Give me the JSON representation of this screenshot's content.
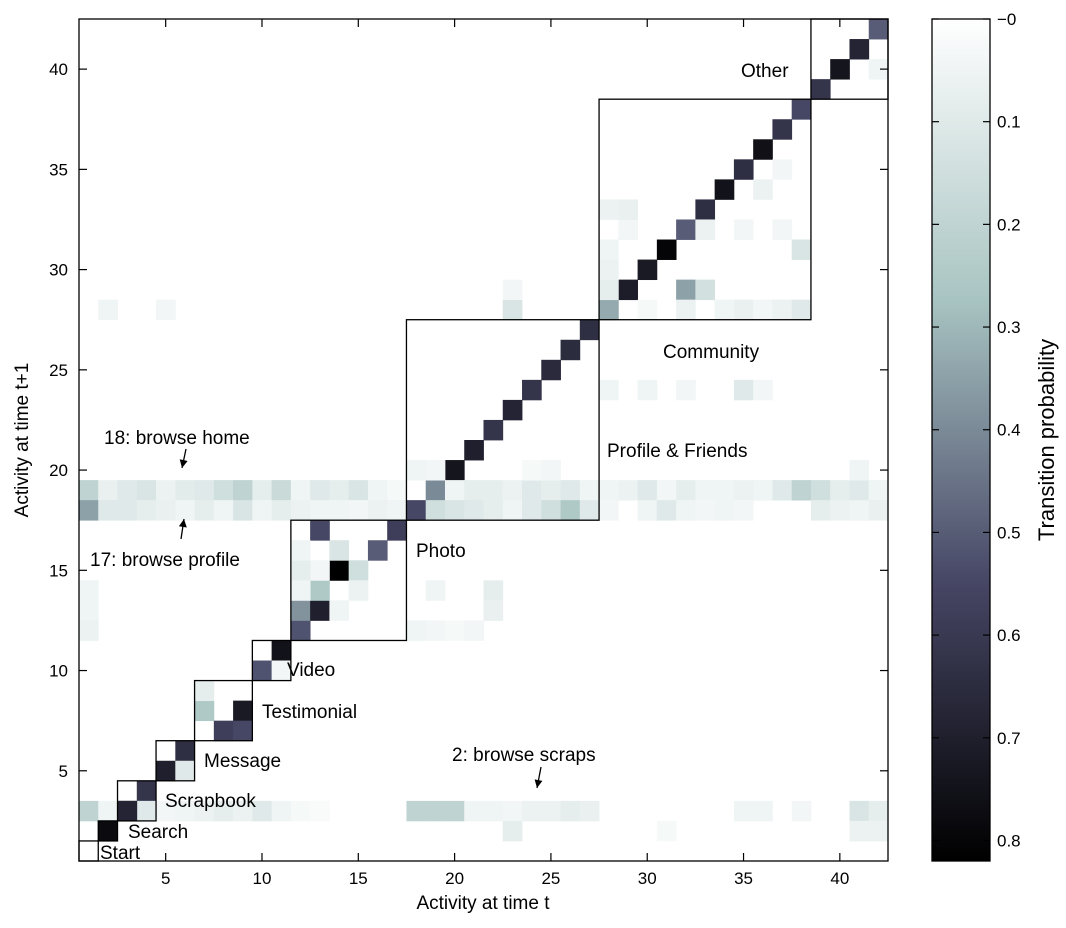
{
  "chart_data": {
    "type": "heatmap",
    "xlabel": "Activity at time t",
    "ylabel": "Activity at time t+1",
    "colorbar_label": "Transition probability",
    "xlim": [
      0.5,
      42.5
    ],
    "ylim": [
      0.5,
      42.5
    ],
    "x_ticks": [
      5,
      10,
      15,
      20,
      25,
      30,
      35,
      40
    ],
    "y_ticks": [
      5,
      10,
      15,
      20,
      25,
      30,
      35,
      40
    ],
    "colorbar_range": [
      0,
      0.82
    ],
    "colorbar_ticks": [
      "−0",
      "0.1",
      "0.2",
      "0.3",
      "0.4",
      "0.5",
      "0.6",
      "0.7",
      "0.8"
    ],
    "colorbar_tick_values": [
      0,
      0.1,
      0.2,
      0.3,
      0.4,
      0.5,
      0.6,
      0.7,
      0.8
    ],
    "colormap": [
      "#ffffff",
      "#a8c4c2",
      "#474766",
      "#000000"
    ],
    "groups": [
      {
        "label": "Start",
        "from": 1,
        "to": 1
      },
      {
        "label": "Search",
        "from": 2,
        "to": 2
      },
      {
        "label": "Scrapbook",
        "from": 3,
        "to": 4
      },
      {
        "label": "Message",
        "from": 5,
        "to": 6
      },
      {
        "label": "Testimonial",
        "from": 7,
        "to": 9
      },
      {
        "label": "Video",
        "from": 10,
        "to": 11
      },
      {
        "label": "Photo",
        "from": 12,
        "to": 17
      },
      {
        "label": "Profile & Friends",
        "from": 18,
        "to": 27
      },
      {
        "label": "Community",
        "from": 28,
        "to": 38
      },
      {
        "label": "Other",
        "from": 39,
        "to": 42
      }
    ],
    "annotations": [
      {
        "text": "18: browse home",
        "target_x": 6,
        "target_y": 19.3
      },
      {
        "text": "17: browse profile",
        "target_x": 6,
        "target_y": 17.6
      },
      {
        "text": "2: browse scraps",
        "target_x": 24,
        "target_y": 3.6
      }
    ],
    "cells": [
      [
        2,
        2,
        0.78
      ],
      [
        3,
        3,
        0.68
      ],
      [
        4,
        4,
        0.62
      ],
      [
        4,
        3,
        0.1
      ],
      [
        5,
        5,
        0.7
      ],
      [
        6,
        6,
        0.64
      ],
      [
        6,
        5,
        0.1
      ],
      [
        7,
        8,
        0.25
      ],
      [
        8,
        7,
        0.58
      ],
      [
        9,
        8,
        0.72
      ],
      [
        9,
        7,
        0.55
      ],
      [
        7,
        9,
        0.08
      ],
      [
        10,
        10,
        0.52
      ],
      [
        11,
        11,
        0.75
      ],
      [
        11,
        10,
        0.04
      ],
      [
        12,
        12,
        0.52
      ],
      [
        12,
        13,
        0.38
      ],
      [
        13,
        13,
        0.7
      ],
      [
        13,
        14,
        0.25
      ],
      [
        14,
        15,
        0.82
      ],
      [
        15,
        15,
        0.15
      ],
      [
        16,
        16,
        0.5
      ],
      [
        17,
        17,
        0.58
      ],
      [
        14,
        16,
        0.12
      ],
      [
        13,
        15,
        0.04
      ],
      [
        12,
        15,
        0.08
      ],
      [
        13,
        17,
        0.55
      ],
      [
        12,
        14,
        0.05
      ],
      [
        12,
        16,
        0.05
      ],
      [
        15,
        14,
        0.06
      ],
      [
        14,
        13,
        0.05
      ],
      [
        18,
        18,
        0.55
      ],
      [
        19,
        19,
        0.4
      ],
      [
        20,
        20,
        0.74
      ],
      [
        21,
        21,
        0.7
      ],
      [
        22,
        22,
        0.62
      ],
      [
        23,
        23,
        0.68
      ],
      [
        24,
        24,
        0.62
      ],
      [
        25,
        25,
        0.66
      ],
      [
        26,
        26,
        0.65
      ],
      [
        27,
        27,
        0.64
      ],
      [
        28,
        28,
        0.33
      ],
      [
        29,
        29,
        0.71
      ],
      [
        30,
        30,
        0.72
      ],
      [
        31,
        31,
        0.8
      ],
      [
        32,
        32,
        0.5
      ],
      [
        33,
        33,
        0.64
      ],
      [
        34,
        34,
        0.75
      ],
      [
        35,
        35,
        0.64
      ],
      [
        36,
        36,
        0.76
      ],
      [
        37,
        37,
        0.62
      ],
      [
        38,
        38,
        0.55
      ],
      [
        32,
        29,
        0.35
      ],
      [
        33,
        29,
        0.14
      ],
      [
        28,
        29,
        0.08
      ],
      [
        28,
        30,
        0.06
      ],
      [
        28,
        31,
        0.05
      ],
      [
        29,
        32,
        0.04
      ],
      [
        33,
        32,
        0.06
      ],
      [
        38,
        31,
        0.12
      ],
      [
        37,
        35,
        0.04
      ],
      [
        30,
        28,
        0.03
      ],
      [
        35,
        28,
        0.07
      ],
      [
        36,
        28,
        0.04
      ],
      [
        37,
        28,
        0.06
      ],
      [
        38,
        28,
        0.1
      ],
      [
        34,
        28,
        0.05
      ],
      [
        32,
        28,
        0.06
      ],
      [
        39,
        39,
        0.62
      ],
      [
        40,
        40,
        0.74
      ],
      [
        41,
        41,
        0.68
      ],
      [
        42,
        42,
        0.5
      ],
      [
        42,
        40,
        0.05
      ],
      [
        1,
        19,
        0.2
      ],
      [
        2,
        19,
        0.07
      ],
      [
        3,
        19,
        0.1
      ],
      [
        4,
        19,
        0.12
      ],
      [
        5,
        19,
        0.06
      ],
      [
        6,
        19,
        0.09
      ],
      [
        7,
        19,
        0.1
      ],
      [
        8,
        19,
        0.15
      ],
      [
        9,
        19,
        0.2
      ],
      [
        10,
        19,
        0.08
      ],
      [
        11,
        19,
        0.17
      ],
      [
        12,
        19,
        0.05
      ],
      [
        13,
        19,
        0.1
      ],
      [
        14,
        19,
        0.08
      ],
      [
        15,
        19,
        0.12
      ],
      [
        16,
        19,
        0.05
      ],
      [
        17,
        19,
        0.03
      ],
      [
        20,
        19,
        0.05
      ],
      [
        21,
        19,
        0.08
      ],
      [
        22,
        19,
        0.08
      ],
      [
        23,
        19,
        0.06
      ],
      [
        24,
        19,
        0.1
      ],
      [
        25,
        19,
        0.08
      ],
      [
        26,
        19,
        0.1
      ],
      [
        27,
        19,
        0.05
      ],
      [
        28,
        19,
        0.05
      ],
      [
        29,
        19,
        0.06
      ],
      [
        30,
        19,
        0.1
      ],
      [
        31,
        19,
        0.04
      ],
      [
        32,
        19,
        0.08
      ],
      [
        33,
        19,
        0.05
      ],
      [
        34,
        19,
        0.05
      ],
      [
        35,
        19,
        0.06
      ],
      [
        36,
        19,
        0.05
      ],
      [
        37,
        19,
        0.1
      ],
      [
        38,
        19,
        0.2
      ],
      [
        39,
        19,
        0.15
      ],
      [
        40,
        19,
        0.08
      ],
      [
        41,
        19,
        0.1
      ],
      [
        42,
        19,
        0.05
      ],
      [
        1,
        18,
        0.35
      ],
      [
        2,
        18,
        0.1
      ],
      [
        3,
        18,
        0.1
      ],
      [
        4,
        18,
        0.08
      ],
      [
        5,
        18,
        0.07
      ],
      [
        6,
        18,
        0.05
      ],
      [
        7,
        18,
        0.08
      ],
      [
        8,
        18,
        0.05
      ],
      [
        9,
        18,
        0.12
      ],
      [
        10,
        18,
        0.05
      ],
      [
        11,
        18,
        0.08
      ],
      [
        12,
        18,
        0.06
      ],
      [
        13,
        18,
        0.05
      ],
      [
        14,
        18,
        0.05
      ],
      [
        15,
        18,
        0.04
      ],
      [
        16,
        18,
        0.06
      ],
      [
        17,
        18,
        0.05
      ],
      [
        19,
        18,
        0.15
      ],
      [
        20,
        18,
        0.12
      ],
      [
        21,
        18,
        0.1
      ],
      [
        22,
        18,
        0.08
      ],
      [
        23,
        18,
        0.05
      ],
      [
        24,
        18,
        0.1
      ],
      [
        25,
        18,
        0.15
      ],
      [
        26,
        18,
        0.25
      ],
      [
        27,
        18,
        0.1
      ],
      [
        28,
        18,
        0.04
      ],
      [
        30,
        18,
        0.05
      ],
      [
        31,
        18,
        0.1
      ],
      [
        32,
        18,
        0.05
      ],
      [
        33,
        18,
        0.04
      ],
      [
        34,
        18,
        0.05
      ],
      [
        35,
        18,
        0.04
      ],
      [
        39,
        18,
        0.08
      ],
      [
        40,
        18,
        0.06
      ],
      [
        41,
        18,
        0.05
      ],
      [
        42,
        18,
        0.07
      ],
      [
        18,
        20,
        0.05
      ],
      [
        19,
        20,
        0.04
      ],
      [
        24,
        20,
        0.03
      ],
      [
        25,
        20,
        0.04
      ],
      [
        41,
        20,
        0.05
      ],
      [
        1,
        3,
        0.2
      ],
      [
        2,
        3,
        0.05
      ],
      [
        3,
        3,
        0.68
      ],
      [
        5,
        3,
        0.04
      ],
      [
        6,
        3,
        0.05
      ],
      [
        7,
        3,
        0.06
      ],
      [
        8,
        3,
        0.08
      ],
      [
        9,
        3,
        0.06
      ],
      [
        10,
        3,
        0.1
      ],
      [
        11,
        3,
        0.05
      ],
      [
        12,
        3,
        0.03
      ],
      [
        13,
        3,
        0.02
      ],
      [
        18,
        3,
        0.2
      ],
      [
        19,
        3,
        0.2
      ],
      [
        20,
        3,
        0.2
      ],
      [
        21,
        3,
        0.05
      ],
      [
        22,
        3,
        0.05
      ],
      [
        23,
        3,
        0.04
      ],
      [
        24,
        3,
        0.06
      ],
      [
        25,
        3,
        0.06
      ],
      [
        26,
        3,
        0.08
      ],
      [
        27,
        3,
        0.07
      ],
      [
        35,
        3,
        0.05
      ],
      [
        36,
        3,
        0.05
      ],
      [
        38,
        3,
        0.04
      ],
      [
        41,
        3,
        0.12
      ],
      [
        42,
        3,
        0.08
      ],
      [
        23,
        2,
        0.08
      ],
      [
        31,
        2,
        0.03
      ],
      [
        41,
        2,
        0.06
      ],
      [
        42,
        2,
        0.06
      ],
      [
        1,
        14,
        0.05
      ],
      [
        1,
        13,
        0.05
      ],
      [
        1,
        12,
        0.06
      ],
      [
        18,
        12,
        0.05
      ],
      [
        19,
        12,
        0.04
      ],
      [
        20,
        12,
        0.03
      ],
      [
        21,
        12,
        0.04
      ],
      [
        22,
        14,
        0.08
      ],
      [
        22,
        13,
        0.07
      ],
      [
        19,
        14,
        0.05
      ],
      [
        2,
        28,
        0.05
      ],
      [
        5,
        28,
        0.04
      ],
      [
        23,
        28,
        0.12
      ],
      [
        23,
        29,
        0.04
      ],
      [
        28,
        24,
        0.05
      ],
      [
        30,
        24,
        0.05
      ],
      [
        32,
        24,
        0.04
      ],
      [
        35,
        24,
        0.1
      ],
      [
        36,
        24,
        0.04
      ],
      [
        29,
        33,
        0.07
      ],
      [
        28,
        33,
        0.06
      ],
      [
        36,
        34,
        0.06
      ],
      [
        35,
        32,
        0.04
      ],
      [
        37,
        32,
        0.04
      ]
    ]
  }
}
